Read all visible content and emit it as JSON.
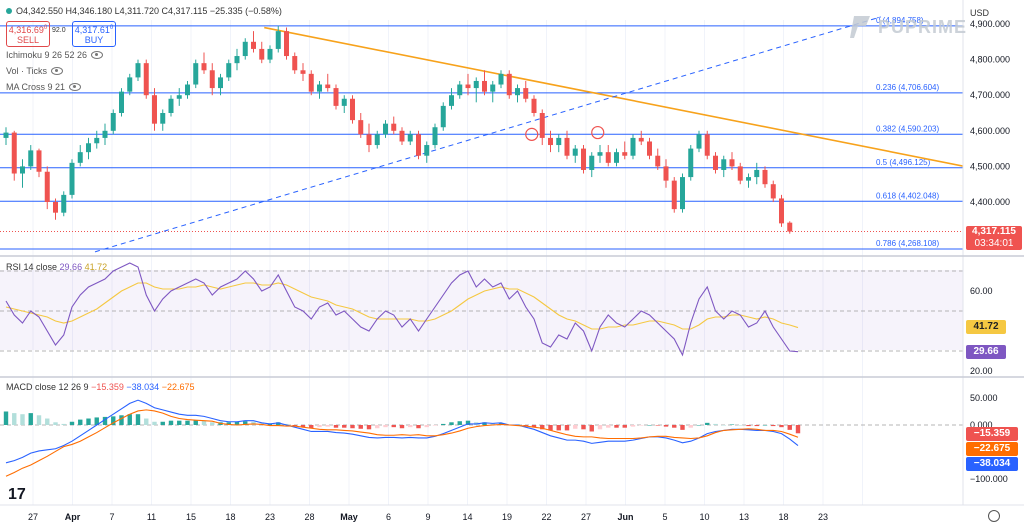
{
  "header": {
    "ohlc": "O4,342.550 H4,346.180 L4,311.720 C4,317.115 −25.335 (−0.58%)",
    "sell_price": "4,316.69",
    "sell_sup": "0",
    "sell_label": "SELL",
    "spread": "92.0",
    "buy_price": "4,317.61",
    "buy_sup": "0",
    "buy_label": "BUY",
    "indicators": [
      "Ichimoku 9 26 52 26",
      "Vol · Ticks",
      "MA Cross 9 21"
    ],
    "currency": "USD",
    "brand": "PUPRIME"
  },
  "price_panel": {
    "current_price": "4,317.115",
    "countdown": "03:34:01",
    "y_ticks": [
      "4,900.000",
      "4,800.000",
      "4,700.000",
      "4,600.000",
      "4,500.000",
      "4,400.000"
    ],
    "fib_levels": [
      {
        "label": "0 (4,894.758)",
        "value": 4894.758
      },
      {
        "label": "0.236 (4,706.604)",
        "value": 4706.604
      },
      {
        "label": "0.382 (4,590.203)",
        "value": 4590.203
      },
      {
        "label": "0.5 (4,496.125)",
        "value": 4496.125
      },
      {
        "label": "0.618 (4,402.048)",
        "value": 4402.048
      },
      {
        "label": "0.786 (4,268.108)",
        "value": 4268.108
      }
    ]
  },
  "rsi_panel": {
    "legend_name": "RSI 14 close",
    "rsi_value": "29.66",
    "ma_value": "41.72",
    "y_ticks": [
      "60.00",
      "40.00",
      "20.00"
    ],
    "label_rsi": "29.66",
    "label_ma": "41.72"
  },
  "macd_panel": {
    "legend_name": "MACD close 12 26 9",
    "hist_value": "−15.359",
    "macd_value": "−38.034",
    "signal_value": "−22.675",
    "y_ticks": [
      "50.000",
      "0.000",
      "−50.000",
      "−100.000"
    ],
    "label_hist": "−15.359",
    "label_signal": "−22.675",
    "label_macd": "−38.034"
  },
  "x_axis": [
    "27",
    "Apr",
    "7",
    "11",
    "15",
    "18",
    "23",
    "28",
    "May",
    "6",
    "9",
    "14",
    "19",
    "22",
    "27",
    "Jun",
    "5",
    "10",
    "13",
    "18",
    "23"
  ],
  "colors": {
    "up": "#26a69a",
    "down": "#ef5350",
    "fib": "#2962ff",
    "trend": "#f7a21b",
    "rsi": "#7e57c2",
    "rsi_ma": "#f5c842",
    "macd": "#2962ff",
    "signal": "#ff6d00"
  },
  "chart_data": [
    {
      "type": "candlestick",
      "title": "",
      "ylim": [
        4240,
        4920
      ],
      "candles_ohlc": [
        [
          4580,
          4610,
          4560,
          4595
        ],
        [
          4595,
          4600,
          4460,
          4480
        ],
        [
          4480,
          4520,
          4440,
          4500
        ],
        [
          4500,
          4560,
          4490,
          4545
        ],
        [
          4545,
          4550,
          4470,
          4485
        ],
        [
          4485,
          4500,
          4380,
          4400
        ],
        [
          4400,
          4410,
          4350,
          4370
        ],
        [
          4370,
          4430,
          4360,
          4420
        ],
        [
          4420,
          4520,
          4410,
          4510
        ],
        [
          4510,
          4560,
          4500,
          4540
        ],
        [
          4540,
          4580,
          4520,
          4565
        ],
        [
          4565,
          4600,
          4550,
          4580
        ],
        [
          4580,
          4620,
          4560,
          4600
        ],
        [
          4600,
          4660,
          4590,
          4650
        ],
        [
          4650,
          4720,
          4640,
          4710
        ],
        [
          4710,
          4760,
          4700,
          4750
        ],
        [
          4750,
          4800,
          4740,
          4790
        ],
        [
          4790,
          4800,
          4690,
          4700
        ],
        [
          4700,
          4720,
          4600,
          4620
        ],
        [
          4620,
          4660,
          4600,
          4650
        ],
        [
          4650,
          4700,
          4640,
          4690
        ],
        [
          4690,
          4720,
          4670,
          4700
        ],
        [
          4700,
          4740,
          4690,
          4730
        ],
        [
          4730,
          4800,
          4720,
          4790
        ],
        [
          4790,
          4820,
          4760,
          4770
        ],
        [
          4770,
          4790,
          4700,
          4720
        ],
        [
          4720,
          4760,
          4700,
          4750
        ],
        [
          4750,
          4800,
          4740,
          4790
        ],
        [
          4790,
          4830,
          4770,
          4810
        ],
        [
          4810,
          4860,
          4800,
          4850
        ],
        [
          4850,
          4880,
          4820,
          4830
        ],
        [
          4830,
          4850,
          4790,
          4800
        ],
        [
          4800,
          4840,
          4790,
          4830
        ],
        [
          4830,
          4895,
          4820,
          4880
        ],
        [
          4880,
          4890,
          4800,
          4810
        ],
        [
          4810,
          4820,
          4760,
          4770
        ],
        [
          4770,
          4790,
          4740,
          4760
        ],
        [
          4760,
          4770,
          4700,
          4710
        ],
        [
          4710,
          4740,
          4690,
          4730
        ],
        [
          4730,
          4760,
          4710,
          4720
        ],
        [
          4720,
          4730,
          4660,
          4670
        ],
        [
          4670,
          4700,
          4650,
          4690
        ],
        [
          4690,
          4700,
          4620,
          4630
        ],
        [
          4630,
          4650,
          4580,
          4590
        ],
        [
          4590,
          4620,
          4540,
          4560
        ],
        [
          4560,
          4600,
          4550,
          4590
        ],
        [
          4590,
          4630,
          4580,
          4620
        ],
        [
          4620,
          4640,
          4590,
          4600
        ],
        [
          4600,
          4610,
          4560,
          4570
        ],
        [
          4570,
          4600,
          4560,
          4590
        ],
        [
          4590,
          4600,
          4520,
          4530
        ],
        [
          4530,
          4570,
          4510,
          4560
        ],
        [
          4560,
          4620,
          4550,
          4610
        ],
        [
          4610,
          4680,
          4600,
          4670
        ],
        [
          4670,
          4720,
          4660,
          4700
        ],
        [
          4700,
          4740,
          4690,
          4730
        ],
        [
          4730,
          4760,
          4700,
          4720
        ],
        [
          4720,
          4750,
          4680,
          4740
        ],
        [
          4740,
          4770,
          4700,
          4710
        ],
        [
          4710,
          4740,
          4680,
          4730
        ],
        [
          4730,
          4770,
          4720,
          4760
        ],
        [
          4760,
          4770,
          4690,
          4700
        ],
        [
          4700,
          4730,
          4680,
          4720
        ],
        [
          4720,
          4740,
          4680,
          4690
        ],
        [
          4690,
          4700,
          4640,
          4650
        ],
        [
          4650,
          4660,
          4560,
          4580
        ],
        [
          4580,
          4600,
          4540,
          4560
        ],
        [
          4560,
          4590,
          4540,
          4580
        ],
        [
          4580,
          4600,
          4520,
          4530
        ],
        [
          4530,
          4560,
          4510,
          4550
        ],
        [
          4550,
          4560,
          4480,
          4490
        ],
        [
          4490,
          4540,
          4470,
          4530
        ],
        [
          4530,
          4560,
          4510,
          4540
        ],
        [
          4540,
          4560,
          4500,
          4510
        ],
        [
          4510,
          4550,
          4500,
          4540
        ],
        [
          4540,
          4570,
          4520,
          4530
        ],
        [
          4530,
          4590,
          4520,
          4580
        ],
        [
          4580,
          4600,
          4560,
          4570
        ],
        [
          4570,
          4580,
          4520,
          4530
        ],
        [
          4530,
          4550,
          4490,
          4500
        ],
        [
          4500,
          4520,
          4440,
          4460
        ],
        [
          4460,
          4470,
          4370,
          4380
        ],
        [
          4380,
          4480,
          4370,
          4470
        ],
        [
          4470,
          4560,
          4460,
          4550
        ],
        [
          4550,
          4600,
          4540,
          4590
        ],
        [
          4590,
          4600,
          4520,
          4530
        ],
        [
          4530,
          4540,
          4480,
          4490
        ],
        [
          4490,
          4530,
          4470,
          4520
        ],
        [
          4520,
          4540,
          4490,
          4500
        ],
        [
          4500,
          4510,
          4450,
          4460
        ],
        [
          4460,
          4480,
          4440,
          4470
        ],
        [
          4470,
          4510,
          4450,
          4490
        ],
        [
          4490,
          4500,
          4440,
          4450
        ],
        [
          4450,
          4460,
          4400,
          4410
        ],
        [
          4410,
          4420,
          4330,
          4340
        ],
        [
          4342,
          4346,
          4311,
          4317
        ]
      ],
      "trendlines": [
        {
          "name": "descending",
          "points": [
            [
              33,
              4890
            ],
            [
              96,
              4470
            ]
          ]
        },
        {
          "name": "rising",
          "points": [
            [
              0,
              4260
            ],
            [
              91,
              4920
            ]
          ]
        }
      ],
      "swing_highs_marked": [
        [
          63,
          4590
        ],
        [
          71,
          4595
        ]
      ]
    },
    {
      "type": "line",
      "title": "RSI 14 close",
      "ylim": [
        10,
        75
      ],
      "series": [
        {
          "name": "RSI",
          "values": [
            55,
            48,
            44,
            50,
            47,
            40,
            33,
            38,
            52,
            58,
            62,
            64,
            66,
            70,
            72,
            74,
            72,
            58,
            50,
            56,
            60,
            62,
            64,
            66,
            64,
            58,
            62,
            64,
            66,
            70,
            66,
            60,
            62,
            68,
            60,
            52,
            50,
            46,
            52,
            54,
            48,
            50,
            46,
            42,
            40,
            46,
            50,
            48,
            42,
            46,
            40,
            46,
            52,
            58,
            64,
            68,
            70,
            62,
            66,
            62,
            64,
            56,
            60,
            52,
            46,
            34,
            32,
            38,
            36,
            44,
            40,
            30,
            42,
            48,
            44,
            42,
            46,
            50,
            48,
            44,
            40,
            36,
            28,
            44,
            56,
            62,
            50,
            46,
            50,
            48,
            42,
            44,
            50,
            42,
            36,
            30,
            29.66
          ]
        },
        {
          "name": "MA",
          "values": [
            52,
            51,
            50,
            49,
            48,
            47,
            45,
            44,
            45,
            47,
            49,
            51,
            54,
            57,
            60,
            62,
            64,
            64,
            62,
            61,
            61,
            61,
            62,
            62,
            63,
            62,
            61,
            62,
            63,
            64,
            64,
            63,
            63,
            64,
            63,
            61,
            59,
            57,
            56,
            55,
            53,
            52,
            51,
            49,
            47,
            46,
            46,
            46,
            46,
            46,
            45,
            45,
            46,
            48,
            50,
            53,
            56,
            58,
            60,
            61,
            62,
            61,
            61,
            59,
            57,
            54,
            51,
            48,
            46,
            45,
            43,
            41,
            41,
            42,
            42,
            43,
            43,
            44,
            45,
            45,
            44,
            43,
            41,
            41,
            43,
            46,
            47,
            47,
            48,
            48,
            47,
            46,
            47,
            46,
            44,
            43,
            41.72
          ]
        }
      ]
    },
    {
      "type": "bar",
      "title": "MACD close 12 26 9",
      "ylim": [
        -115,
        65
      ],
      "series": [
        {
          "name": "Histogram",
          "values": [
            25,
            22,
            20,
            22,
            18,
            12,
            5,
            2,
            6,
            10,
            12,
            14,
            15,
            16,
            18,
            20,
            20,
            12,
            6,
            6,
            8,
            8,
            8,
            9,
            8,
            5,
            5,
            5,
            6,
            7,
            6,
            3,
            3,
            5,
            2,
            -2,
            -4,
            -6,
            -4,
            -3,
            -5,
            -5,
            -6,
            -7,
            -8,
            -6,
            -4,
            -4,
            -6,
            -4,
            -6,
            -4,
            -1,
            2,
            5,
            7,
            8,
            5,
            5,
            3,
            3,
            0,
            1,
            -2,
            -4,
            -8,
            -10,
            -10,
            -10,
            -7,
            -8,
            -12,
            -8,
            -5,
            -5,
            -5,
            -3,
            -1,
            0,
            -1,
            -3,
            -5,
            -9,
            -5,
            0,
            4,
            2,
            0,
            1,
            0,
            -2,
            -2,
            0,
            -2,
            -4,
            -9,
            -15.359
          ]
        },
        {
          "name": "MACD",
          "values": [
            -70,
            -66,
            -60,
            -52,
            -48,
            -46,
            -44,
            -38,
            -30,
            -20,
            -10,
            0,
            10,
            20,
            30,
            40,
            46,
            40,
            32,
            28,
            24,
            20,
            18,
            18,
            16,
            12,
            8,
            6,
            6,
            8,
            8,
            4,
            2,
            4,
            0,
            -4,
            -8,
            -12,
            -12,
            -12,
            -14,
            -15,
            -17,
            -20,
            -23,
            -24,
            -23,
            -23,
            -24,
            -23,
            -24,
            -24,
            -21,
            -16,
            -10,
            -4,
            2,
            2,
            4,
            3,
            4,
            0,
            0,
            -4,
            -8,
            -14,
            -20,
            -24,
            -28,
            -28,
            -30,
            -34,
            -32,
            -30,
            -30,
            -30,
            -28,
            -25,
            -22,
            -22,
            -24,
            -28,
            -33,
            -30,
            -24,
            -16,
            -12,
            -10,
            -8,
            -8,
            -9,
            -10,
            -10,
            -12,
            -16,
            -26,
            -38.034
          ]
        },
        {
          "name": "Signal",
          "values": [
            -95,
            -88,
            -80,
            -74,
            -66,
            -58,
            -49,
            -40,
            -36,
            -30,
            -22,
            -14,
            -5,
            4,
            12,
            20,
            26,
            28,
            26,
            22,
            16,
            12,
            10,
            9,
            8,
            7,
            3,
            1,
            0,
            1,
            2,
            1,
            -1,
            -1,
            -2,
            -2,
            -4,
            -6,
            -8,
            -9,
            -9,
            -10,
            -11,
            -13,
            -15,
            -18,
            -19,
            -19,
            -18,
            -19,
            -18,
            -20,
            -20,
            -18,
            -15,
            -11,
            -6,
            -3,
            -1,
            0,
            1,
            0,
            -1,
            -2,
            -4,
            -6,
            -10,
            -14,
            -18,
            -21,
            -22,
            -22,
            -24,
            -25,
            -25,
            -25,
            -25,
            -24,
            -22,
            -21,
            -21,
            -23,
            -24,
            -25,
            -24,
            -20,
            -14,
            -10,
            -9,
            -8,
            -7,
            -8,
            -10,
            -10,
            -12,
            -17,
            -22.675
          ]
        }
      ]
    }
  ]
}
